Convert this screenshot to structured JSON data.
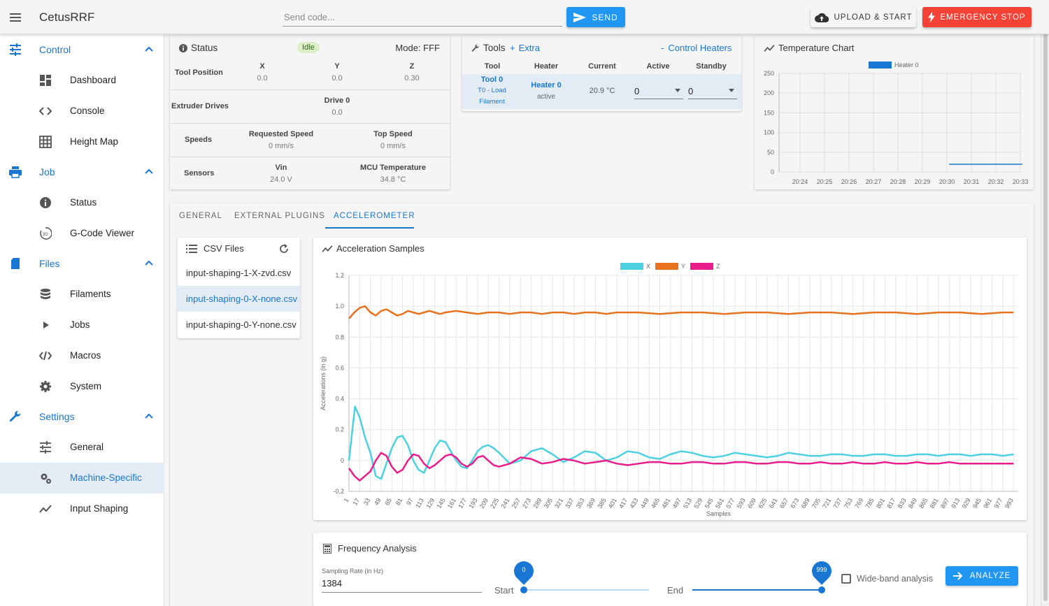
{
  "app": {
    "title": "CetusRRF"
  },
  "header": {
    "send_placeholder": "Send code...",
    "send_label": "SEND",
    "upload_label": "UPLOAD & START",
    "estop_label": "EMERGENCY STOP"
  },
  "sidebar": {
    "groups": [
      {
        "label": "Control",
        "items": [
          "Dashboard",
          "Console",
          "Height Map"
        ]
      },
      {
        "label": "Job",
        "items": [
          "Status",
          "G-Code Viewer"
        ]
      },
      {
        "label": "Files",
        "items": [
          "Filaments",
          "Jobs",
          "Macros",
          "System"
        ]
      },
      {
        "label": "Settings",
        "items": [
          "General",
          "Machine-Specific",
          "Input Shaping"
        ]
      }
    ],
    "active_item": "Machine-Specific"
  },
  "status": {
    "title": "Status",
    "state": "Idle",
    "mode": "Mode: FFF",
    "tool_position_label": "Tool Position",
    "axes": [
      {
        "name": "X",
        "value": "0.0"
      },
      {
        "name": "Y",
        "value": "0.0"
      },
      {
        "name": "Z",
        "value": "0.30"
      }
    ],
    "extruder_label": "Extruder Drives",
    "drive_name": "Drive 0",
    "drive_value": "0.0",
    "speeds_label": "Speeds",
    "requested_speed_label": "Requested Speed",
    "requested_speed": "0 mm/s",
    "top_speed_label": "Top Speed",
    "top_speed": "0 mm/s",
    "sensors_label": "Sensors",
    "vin_label": "Vin",
    "vin": "24.0 V",
    "mcu_label": "MCU Temperature",
    "mcu": "34.8 °C"
  },
  "tools": {
    "title": "Tools",
    "extra": "Extra",
    "control_heaters": "Control Heaters",
    "columns": [
      "Tool",
      "Heater",
      "Current",
      "Active",
      "Standby"
    ],
    "row": {
      "tool": "Tool 0",
      "tool_sub": "T0 - Load",
      "tool_sub2": "Filament",
      "heater": "Heater 0",
      "heater_state": "active",
      "current": "20.9 °C",
      "active": "0",
      "standby": "0"
    }
  },
  "temp_chart": {
    "title": "Temperature Chart",
    "legend": "Heater 0",
    "color": "#1976d2",
    "y_ticks": [
      "250",
      "200",
      "150",
      "100",
      "50",
      "0"
    ],
    "x_ticks": [
      "20:24",
      "20:25",
      "20:26",
      "20:27",
      "20:28",
      "20:29",
      "20:30",
      "20:31",
      "20:32",
      "20:33"
    ]
  },
  "tabs": [
    "GENERAL",
    "EXTERNAL PLUGINS",
    "ACCELEROMETER"
  ],
  "active_tab": "ACCELEROMETER",
  "csv": {
    "title": "CSV Files",
    "files": [
      "input-shaping-1-X-zvd.csv",
      "input-shaping-0-X-none.csv",
      "input-shaping-0-Y-none.csv"
    ],
    "selected": "input-shaping-0-X-none.csv"
  },
  "chart_data": {
    "type": "line",
    "title": "Acceleration Samples",
    "xlabel": "Samples",
    "ylabel": "Accelerations (in g)",
    "ylim": [
      -0.2,
      1.2
    ],
    "xlim": [
      1,
      1000
    ],
    "y_ticks": [
      "1.2",
      "1.0",
      "0.8",
      "0.6",
      "0.4",
      "0.2",
      "0",
      "-0.2"
    ],
    "x_ticks": [
      "1",
      "17",
      "33",
      "49",
      "65",
      "81",
      "97",
      "113",
      "129",
      "145",
      "161",
      "177",
      "193",
      "209",
      "225",
      "241",
      "257",
      "273",
      "289",
      "305",
      "321",
      "337",
      "353",
      "369",
      "385",
      "401",
      "417",
      "433",
      "449",
      "465",
      "481",
      "497",
      "513",
      "529",
      "545",
      "561",
      "577",
      "593",
      "609",
      "625",
      "641",
      "657",
      "673",
      "689",
      "705",
      "721",
      "737",
      "753",
      "769",
      "785",
      "801",
      "817",
      "833",
      "849",
      "865",
      "881",
      "897",
      "913",
      "929",
      "945",
      "961",
      "977",
      "993"
    ],
    "legend_position": "top",
    "series": [
      {
        "name": "X",
        "color": "#4dd0e1",
        "x": [
          1,
          10,
          17,
          25,
          33,
          41,
          49,
          57,
          65,
          73,
          81,
          89,
          97,
          105,
          113,
          121,
          129,
          137,
          145,
          153,
          161,
          169,
          177,
          185,
          193,
          201,
          209,
          217,
          225,
          241,
          257,
          273,
          289,
          305,
          321,
          337,
          353,
          369,
          385,
          401,
          417,
          433,
          449,
          465,
          481,
          497,
          513,
          529,
          545,
          561,
          577,
          593,
          609,
          625,
          641,
          657,
          673,
          689,
          705,
          721,
          737,
          753,
          769,
          785,
          801,
          817,
          833,
          849,
          865,
          881,
          897,
          913,
          929,
          945,
          961,
          977,
          993
        ],
        "values": [
          0.0,
          0.35,
          0.28,
          0.15,
          0.05,
          -0.1,
          -0.12,
          -0.02,
          0.08,
          0.15,
          0.16,
          0.1,
          0.0,
          -0.06,
          -0.08,
          0.0,
          0.08,
          0.13,
          0.12,
          0.06,
          0.0,
          -0.04,
          -0.05,
          0.0,
          0.06,
          0.09,
          0.1,
          0.08,
          0.05,
          -0.02,
          0.0,
          0.06,
          0.08,
          0.04,
          -0.01,
          0.02,
          0.06,
          0.05,
          0.0,
          0.02,
          0.06,
          0.05,
          0.02,
          0.01,
          0.04,
          0.06,
          0.05,
          0.03,
          0.02,
          0.03,
          0.05,
          0.04,
          0.03,
          0.02,
          0.03,
          0.05,
          0.04,
          0.03,
          0.03,
          0.04,
          0.04,
          0.03,
          0.03,
          0.04,
          0.04,
          0.03,
          0.03,
          0.04,
          0.04,
          0.03,
          0.04,
          0.04,
          0.03,
          0.04,
          0.04,
          0.03,
          0.04
        ]
      },
      {
        "name": "Y",
        "color": "#e8711e",
        "x": [
          1,
          9,
          17,
          25,
          33,
          41,
          49,
          57,
          65,
          73,
          81,
          89,
          97,
          105,
          113,
          121,
          129,
          137,
          145,
          161,
          177,
          193,
          209,
          225,
          241,
          257,
          273,
          289,
          305,
          321,
          337,
          353,
          369,
          385,
          401,
          433,
          465,
          497,
          529,
          561,
          593,
          625,
          657,
          689,
          721,
          753,
          785,
          817,
          849,
          881,
          913,
          945,
          977,
          993
        ],
        "values": [
          0.92,
          0.96,
          0.99,
          1.0,
          0.96,
          0.94,
          0.97,
          0.98,
          0.96,
          0.94,
          0.95,
          0.97,
          0.96,
          0.95,
          0.96,
          0.97,
          0.96,
          0.95,
          0.96,
          0.97,
          0.96,
          0.95,
          0.96,
          0.96,
          0.95,
          0.96,
          0.96,
          0.95,
          0.96,
          0.96,
          0.95,
          0.96,
          0.96,
          0.95,
          0.96,
          0.96,
          0.95,
          0.96,
          0.96,
          0.95,
          0.96,
          0.96,
          0.95,
          0.96,
          0.96,
          0.95,
          0.96,
          0.96,
          0.95,
          0.96,
          0.96,
          0.95,
          0.96,
          0.96
        ]
      },
      {
        "name": "Z",
        "color": "#e91e8c",
        "x": [
          1,
          9,
          17,
          25,
          33,
          41,
          49,
          57,
          65,
          73,
          81,
          89,
          97,
          105,
          113,
          121,
          129,
          137,
          145,
          153,
          161,
          169,
          177,
          185,
          193,
          201,
          209,
          217,
          225,
          241,
          257,
          273,
          289,
          305,
          321,
          337,
          353,
          369,
          385,
          401,
          417,
          433,
          449,
          465,
          481,
          497,
          513,
          529,
          545,
          561,
          577,
          593,
          609,
          625,
          641,
          657,
          673,
          689,
          705,
          721,
          737,
          753,
          769,
          785,
          801,
          817,
          833,
          849,
          865,
          881,
          897,
          913,
          929,
          945,
          961,
          977,
          993
        ],
        "values": [
          -0.05,
          -0.1,
          -0.13,
          -0.1,
          -0.07,
          0.0,
          0.05,
          0.03,
          -0.04,
          -0.08,
          -0.06,
          0.0,
          0.04,
          0.03,
          -0.02,
          -0.05,
          -0.03,
          0.0,
          0.03,
          0.04,
          0.02,
          -0.02,
          -0.04,
          -0.02,
          0.02,
          0.03,
          0.0,
          -0.03,
          -0.04,
          -0.02,
          0.02,
          0.01,
          -0.02,
          -0.01,
          0.01,
          0.0,
          -0.02,
          -0.01,
          0.0,
          -0.02,
          -0.03,
          -0.02,
          -0.01,
          -0.01,
          -0.02,
          -0.02,
          -0.01,
          -0.01,
          -0.02,
          -0.02,
          -0.01,
          -0.01,
          -0.02,
          -0.02,
          -0.01,
          -0.01,
          -0.02,
          -0.02,
          -0.01,
          -0.02,
          -0.02,
          -0.01,
          -0.02,
          -0.02,
          -0.01,
          -0.02,
          -0.02,
          -0.01,
          -0.02,
          -0.02,
          -0.01,
          -0.02,
          -0.02,
          -0.02,
          -0.02,
          -0.02,
          -0.02
        ]
      }
    ]
  },
  "freq": {
    "title": "Frequency Analysis",
    "sampling_label": "Sampling Rate (in Hz)",
    "sampling_value": "1384",
    "start_label": "Start",
    "start_value": "0",
    "end_label": "End",
    "end_value": "999",
    "wideband_label": "Wide-band analysis",
    "analyze_label": "ANALYZE"
  }
}
